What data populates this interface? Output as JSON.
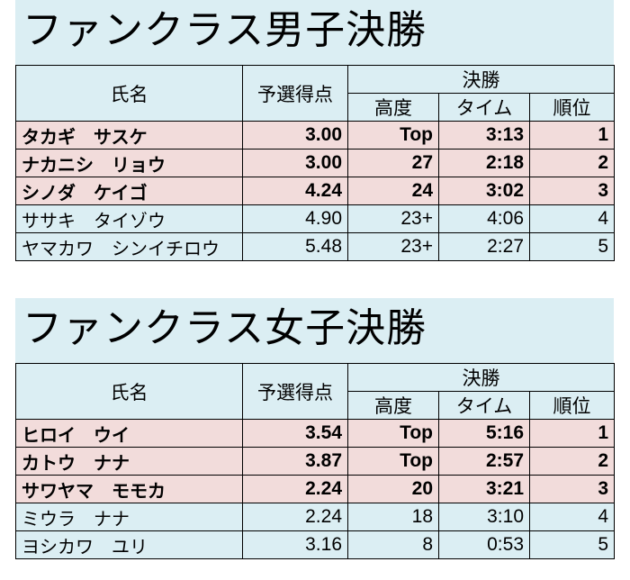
{
  "sections": [
    {
      "title": "ファンクラス男子決勝",
      "header": {
        "name": "氏名",
        "prelim": "予選得点",
        "final": "決勝",
        "height": "高度",
        "time": "タイム",
        "rank": "順位"
      },
      "rows": [
        {
          "name": "タカギ　サスケ",
          "prelim": "3.00",
          "height": "Top",
          "time": "3:13",
          "rank": "1",
          "podium": true
        },
        {
          "name": "ナカニシ　リョウ",
          "prelim": "3.00",
          "height": "27",
          "time": "2:18",
          "rank": "2",
          "podium": true
        },
        {
          "name": "シノダ　ケイゴ",
          "prelim": "4.24",
          "height": "24",
          "time": "3:02",
          "rank": "3",
          "podium": true
        },
        {
          "name": "ササキ　タイゾウ",
          "prelim": "4.90",
          "height": "23+",
          "time": "4:06",
          "rank": "4",
          "podium": false
        },
        {
          "name": "ヤマカワ　シンイチロウ",
          "prelim": "5.48",
          "height": "23+",
          "time": "2:27",
          "rank": "5",
          "podium": false
        }
      ]
    },
    {
      "title": "ファンクラス女子決勝",
      "header": {
        "name": "氏名",
        "prelim": "予選得点",
        "final": "決勝",
        "height": "高度",
        "time": "タイム",
        "rank": "順位"
      },
      "rows": [
        {
          "name": "ヒロイ　ウイ",
          "prelim": "3.54",
          "height": "Top",
          "time": "5:16",
          "rank": "1",
          "podium": true
        },
        {
          "name": "カトウ　ナナ",
          "prelim": "3.87",
          "height": "Top",
          "time": "2:57",
          "rank": "2",
          "podium": true
        },
        {
          "name": "サワヤマ　モモカ",
          "prelim": "2.24",
          "height": "20",
          "time": "3:21",
          "rank": "3",
          "podium": true
        },
        {
          "name": "ミウラ　ナナ",
          "prelim": "2.24",
          "height": "18",
          "time": "3:10",
          "rank": "4",
          "podium": false
        },
        {
          "name": "ヨシカワ　ユリ",
          "prelim": "3.16",
          "height": "8",
          "time": "0:53",
          "rank": "5",
          "podium": false
        }
      ]
    }
  ],
  "colors": {
    "title_band": "#dbeef3",
    "podium_row": "#f2dcdb",
    "other_row": "#dbeef3",
    "border": "#000000"
  }
}
